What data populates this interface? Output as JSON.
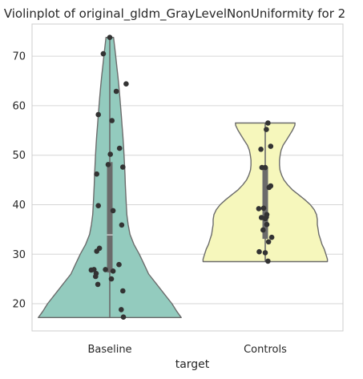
{
  "chart_data": {
    "type": "violin",
    "title": "Violinplot of original_gldm_GrayLevelNonUniformity for 2",
    "xlabel": "target",
    "ylabel": "",
    "categories": [
      "Baseline",
      "Controls"
    ],
    "ylim": [
      14.5,
      76.5
    ],
    "yticks": [
      20,
      30,
      40,
      50,
      60,
      70
    ],
    "ytick_labels": [
      "20",
      "30",
      "40",
      "50",
      "60",
      "70"
    ],
    "grid": true,
    "colors": {
      "Baseline": "#93cbbe",
      "Controls": "#f6f7bc",
      "edge": "#6b6b6b",
      "points": "#333333",
      "grid": "#d6d6d6",
      "box": "#6b6b6b",
      "median": "#c8c8c8"
    },
    "series": [
      {
        "category": "Baseline",
        "points": [
          {
            "jitter": 0.0,
            "y": 73.8
          },
          {
            "jitter": -0.12,
            "y": 70.5
          },
          {
            "jitter": 0.3,
            "y": 64.4
          },
          {
            "jitter": 0.12,
            "y": 62.9
          },
          {
            "jitter": -0.21,
            "y": 58.2
          },
          {
            "jitter": 0.04,
            "y": 57.0
          },
          {
            "jitter": 0.18,
            "y": 51.4
          },
          {
            "jitter": 0.01,
            "y": 50.2
          },
          {
            "jitter": -0.03,
            "y": 48.1
          },
          {
            "jitter": 0.24,
            "y": 47.6
          },
          {
            "jitter": -0.24,
            "y": 46.2
          },
          {
            "jitter": 0.06,
            "y": 38.8
          },
          {
            "jitter": -0.21,
            "y": 39.8
          },
          {
            "jitter": 0.22,
            "y": 35.9
          },
          {
            "jitter": -0.19,
            "y": 31.2
          },
          {
            "jitter": -0.24,
            "y": 30.6
          },
          {
            "jitter": 0.17,
            "y": 27.9
          },
          {
            "jitter": -0.29,
            "y": 26.9
          },
          {
            "jitter": -0.34,
            "y": 26.8
          },
          {
            "jitter": -0.08,
            "y": 26.9
          },
          {
            "jitter": 0.06,
            "y": 26.6
          },
          {
            "jitter": -0.25,
            "y": 26.1
          },
          {
            "jitter": -0.26,
            "y": 25.5
          },
          {
            "jitter": 0.03,
            "y": 25.0
          },
          {
            "jitter": -0.22,
            "y": 23.9
          },
          {
            "jitter": 0.24,
            "y": 22.6
          },
          {
            "jitter": 0.21,
            "y": 18.8
          },
          {
            "jitter": 0.25,
            "y": 17.3
          }
        ],
        "box": {
          "q1": 26.3,
          "q3": 48.6,
          "median": 33.9,
          "whisker_low": 17.2,
          "whisker_high": 73.8
        },
        "violin": {
          "y": [
            17.2,
            18.5,
            20,
            22,
            24,
            26,
            28,
            30,
            32,
            34,
            36,
            38,
            40,
            42,
            44,
            46,
            48,
            50,
            52,
            54,
            56,
            58,
            60,
            62,
            64,
            66,
            68,
            70,
            72,
            73.8
          ],
          "halfwidth": [
            0.46,
            0.43,
            0.4,
            0.35,
            0.3,
            0.25,
            0.22,
            0.19,
            0.155,
            0.13,
            0.118,
            0.11,
            0.106,
            0.103,
            0.1,
            0.098,
            0.095,
            0.092,
            0.088,
            0.084,
            0.079,
            0.074,
            0.069,
            0.064,
            0.058,
            0.052,
            0.045,
            0.038,
            0.031,
            0.024
          ]
        }
      },
      {
        "category": "Controls",
        "points": [
          {
            "jitter": 0.05,
            "y": 56.5
          },
          {
            "jitter": 0.02,
            "y": 55.2
          },
          {
            "jitter": 0.1,
            "y": 51.8
          },
          {
            "jitter": -0.08,
            "y": 51.2
          },
          {
            "jitter": -0.06,
            "y": 47.5
          },
          {
            "jitter": 0.0,
            "y": 47.5
          },
          {
            "jitter": 0.1,
            "y": 43.8
          },
          {
            "jitter": 0.07,
            "y": 43.5
          },
          {
            "jitter": -0.12,
            "y": 39.2
          },
          {
            "jitter": -0.03,
            "y": 39.3
          },
          {
            "jitter": 0.03,
            "y": 38.0
          },
          {
            "jitter": -0.07,
            "y": 37.4
          },
          {
            "jitter": 0.0,
            "y": 37.2
          },
          {
            "jitter": 0.02,
            "y": 37.5
          },
          {
            "jitter": 0.03,
            "y": 36.0
          },
          {
            "jitter": -0.04,
            "y": 34.9
          },
          {
            "jitter": 0.12,
            "y": 33.4
          },
          {
            "jitter": 0.06,
            "y": 32.5
          },
          {
            "jitter": -0.11,
            "y": 30.5
          },
          {
            "jitter": 0.0,
            "y": 30.3
          },
          {
            "jitter": 0.05,
            "y": 28.6
          }
        ],
        "box": {
          "q1": 33.1,
          "q3": 47.6,
          "median": 37.5,
          "whisker_low": 28.5,
          "whisker_high": 56.5
        },
        "violin": {
          "y": [
            28.5,
            29,
            30,
            31,
            32,
            33,
            34,
            35,
            36,
            37,
            38,
            39,
            40,
            41,
            42,
            43,
            44,
            45,
            46,
            47,
            48,
            49,
            50,
            51,
            52,
            53,
            54,
            55,
            56,
            56.5
          ],
          "halfwidth": [
            0.4,
            0.4,
            0.39,
            0.38,
            0.365,
            0.355,
            0.345,
            0.34,
            0.335,
            0.335,
            0.33,
            0.315,
            0.29,
            0.255,
            0.215,
            0.175,
            0.145,
            0.12,
            0.105,
            0.095,
            0.092,
            0.092,
            0.096,
            0.102,
            0.115,
            0.135,
            0.155,
            0.175,
            0.19,
            0.192
          ]
        }
      }
    ]
  }
}
